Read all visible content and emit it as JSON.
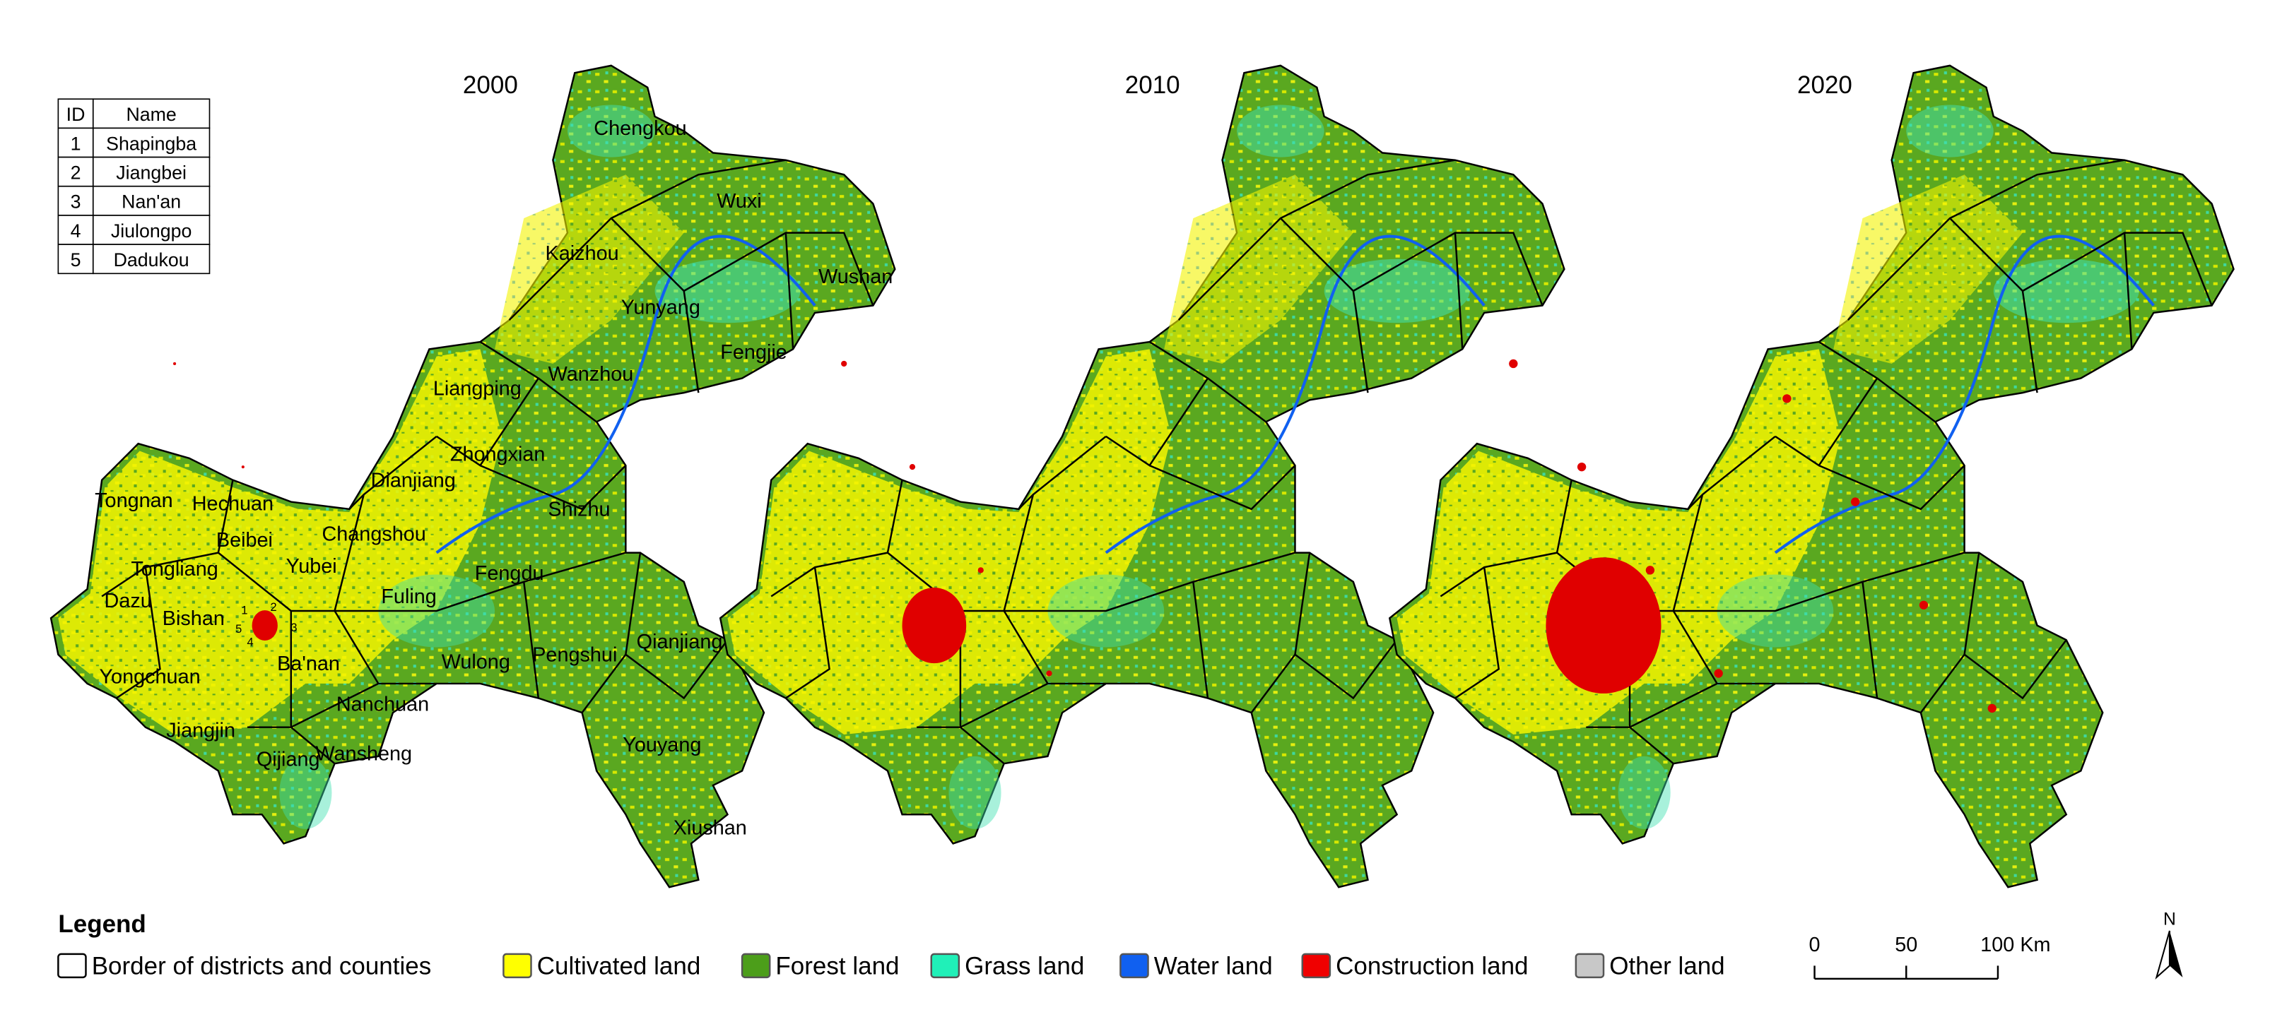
{
  "maps": [
    {
      "year": "2000"
    },
    {
      "year": "2010"
    },
    {
      "year": "2020"
    }
  ],
  "table": {
    "header": [
      "ID",
      "Name"
    ],
    "rows": [
      [
        "1",
        "Shapingba"
      ],
      [
        "2",
        "Jiangbei"
      ],
      [
        "3",
        "Nan'an"
      ],
      [
        "4",
        "Jiulongpo"
      ],
      [
        "5",
        "Dadukou"
      ]
    ]
  },
  "districts": [
    "Chengkou",
    "Wuxi",
    "Kaizhou",
    "Wushan",
    "Yunyang",
    "Fengjie",
    "Liangping",
    "Wanzhou",
    "Zhongxian",
    "Dianjiang",
    "Shizhu",
    "Tongnan",
    "Hechuan",
    "Beibei",
    "Changshou",
    "Tongliang",
    "Yubei",
    "Fuling",
    "Fengdu",
    "Dazu",
    "Bishan",
    "Qianjiang",
    "Ba'nan",
    "Pengshui",
    "Yongchuan",
    "Wulong",
    "Nanchuan",
    "Jiangjin",
    "Qijiang",
    "Wansheng",
    "Youyang",
    "Xiushan",
    "1",
    "2",
    "3",
    "4",
    "5"
  ],
  "legend": {
    "title": "Legend",
    "items": [
      {
        "label": "Border of districts and counties",
        "color": "#ffffff"
      },
      {
        "label": "Cultivated land",
        "color": "#ffff00"
      },
      {
        "label": "Forest land",
        "color": "#4c9e1a"
      },
      {
        "label": "Grass land",
        "color": "#20f0b8"
      },
      {
        "label": "Water land",
        "color": "#1060f0"
      },
      {
        "label": "Construction land",
        "color": "#f00000"
      },
      {
        "label": "Other land",
        "color": "#c8c8c8"
      }
    ]
  },
  "scale_bar": {
    "labels": [
      "0",
      "50",
      "100 Km"
    ]
  },
  "north": "N"
}
